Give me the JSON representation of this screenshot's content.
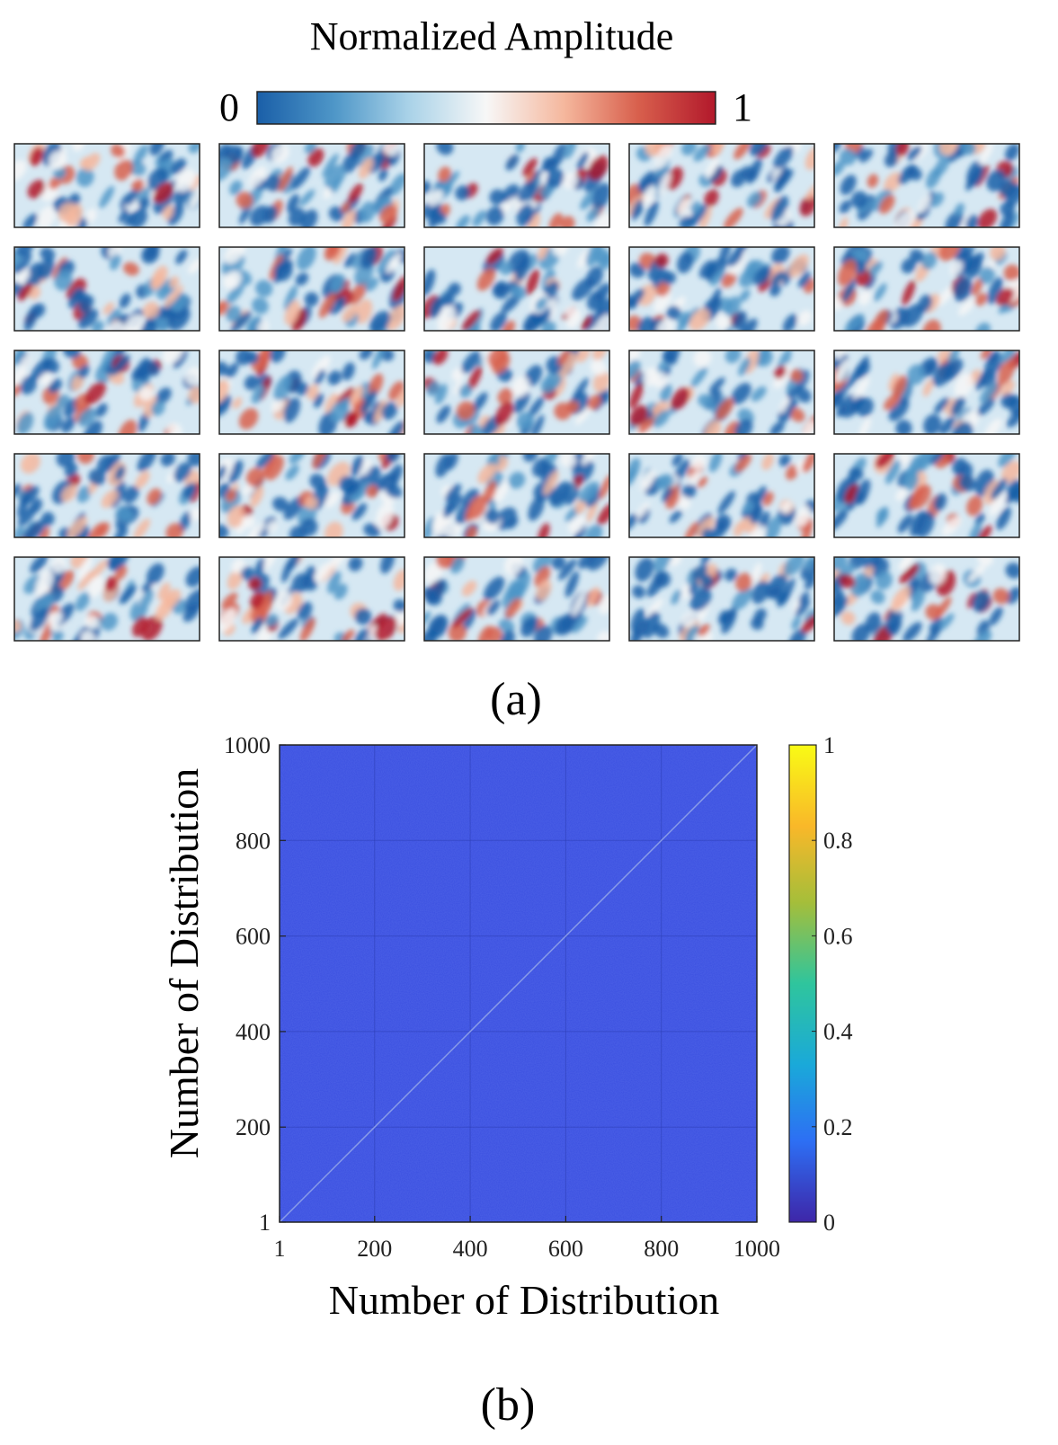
{
  "panel_a": {
    "colorbar": {
      "title": "Normalized Amplitude",
      "min_label": "0",
      "max_label": "1",
      "colors": [
        "#1a5fa8",
        "#4f97c8",
        "#a9d2e8",
        "#f7f7f7",
        "#f5b79d",
        "#d8604d",
        "#b2182b"
      ]
    },
    "grid": {
      "rows": 5,
      "cols": 5
    },
    "caption": "(a)"
  },
  "panel_b": {
    "caption": "(b)",
    "colorbar": {
      "ticks": [
        "0",
        "0.2",
        "0.4",
        "0.6",
        "0.8",
        "1"
      ],
      "colors": [
        "#3e26a8",
        "#2d6ff4",
        "#1aa9d9",
        "#2fc59d",
        "#a5be3a",
        "#f9b829",
        "#f9fb15"
      ]
    },
    "background_color": "#3a4fe0",
    "diagonal_color": "#8a9ce8"
  },
  "chart_data": [
    {
      "type": "heatmap",
      "title": "Normalized Amplitude",
      "description_grid": "5 x 5 array of random amplitude distributions",
      "rows": 5,
      "cols": 5,
      "color_range": [
        0,
        1
      ]
    },
    {
      "type": "heatmap",
      "xlabel": "Number of Distribution",
      "ylabel": "Number of Distribution",
      "xlim": [
        1,
        1000
      ],
      "ylim": [
        1,
        1000
      ],
      "xticks": [
        1,
        200,
        400,
        600,
        800,
        1000
      ],
      "yticks": [
        1,
        200,
        400,
        600,
        800,
        1000
      ],
      "xtick_labels": [
        "1",
        "200",
        "400",
        "600",
        "800",
        "1000"
      ],
      "ytick_labels": [
        "1",
        "200",
        "400",
        "600",
        "800",
        "1000"
      ],
      "color_range": [
        0,
        1
      ],
      "diagonal_value": 1,
      "off_diagonal_value_approx": 0.1
    }
  ]
}
